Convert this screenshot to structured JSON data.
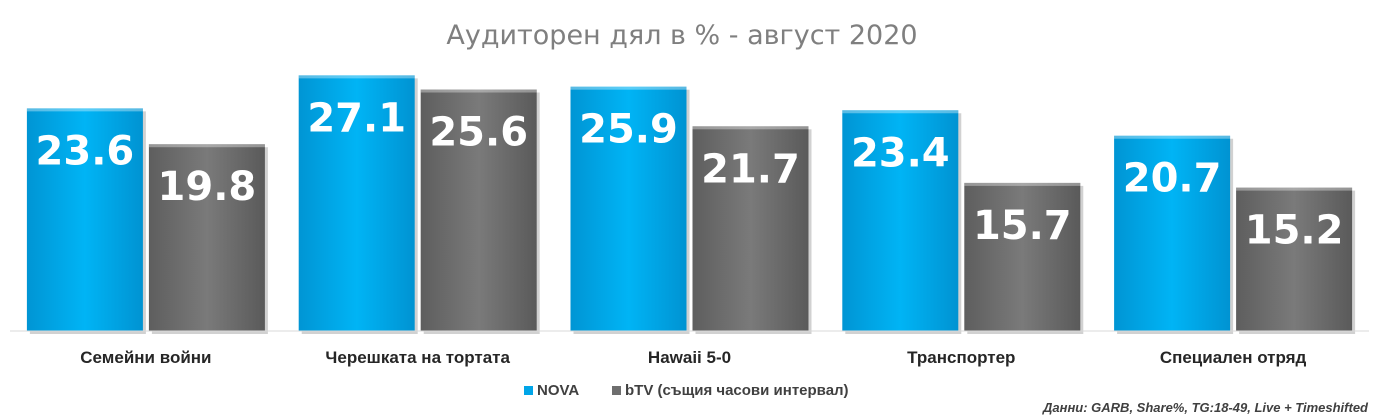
{
  "chart_data": {
    "type": "bar",
    "title": "Аудиторен дял в % - август 2020",
    "categories": [
      "Семейни войни",
      "Черешката на тортата",
      "Hawaii 5-0",
      "Транспортер",
      "Специален отряд"
    ],
    "series": [
      {
        "name": "NOVA",
        "color": "#00a5e8",
        "values": [
          23.6,
          27.1,
          25.9,
          23.4,
          20.7
        ]
      },
      {
        "name": "bTV (същия часови интервал)",
        "color": "#6e6e6e",
        "values": [
          19.8,
          25.6,
          21.7,
          15.7,
          15.2
        ]
      }
    ],
    "ylim": [
      0,
      30
    ],
    "xlabel": "",
    "ylabel": "",
    "grid": false,
    "legend": "bottom-center"
  },
  "source_note": "Данни: GARB, Share%, TG:18-49, Live + Timeshifted"
}
